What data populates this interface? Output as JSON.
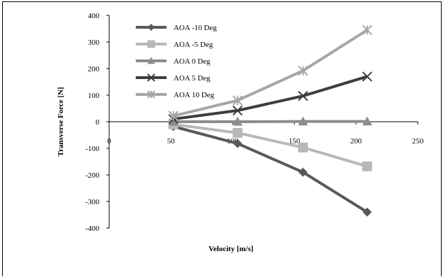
{
  "chart_data": {
    "type": "line",
    "xlabel": "Velocity [m/s]",
    "ylabel": "Transverse Force [N]",
    "xlim": [
      0,
      250
    ],
    "ylim": [
      -400,
      400
    ],
    "x_ticks": [
      "0",
      "50",
      "100",
      "150",
      "200",
      "250"
    ],
    "y_ticks": [
      "400",
      "300",
      "200",
      "100",
      "0",
      "-100",
      "-200",
      "-300",
      "-400"
    ],
    "grid": false,
    "legend_position": "top-left",
    "series": [
      {
        "name": "AOA -10 Deg",
        "marker": "diamond",
        "color": "#595959",
        "x": [
          52,
          104,
          157,
          209
        ],
        "y": [
          -18,
          -82,
          -190,
          -340
        ]
      },
      {
        "name": "AOA -5 Deg",
        "marker": "square",
        "color": "#b8b8b8",
        "x": [
          52,
          104,
          157,
          209
        ],
        "y": [
          -10,
          -42,
          -97,
          -168
        ]
      },
      {
        "name": "AOA 0 Deg",
        "marker": "triangle",
        "color": "#8c8c8c",
        "x": [
          52,
          104,
          157,
          209
        ],
        "y": [
          0,
          0,
          1,
          1
        ]
      },
      {
        "name": "AOA 5 Deg",
        "marker": "x",
        "color": "#3d3d3d",
        "x": [
          52,
          104,
          157,
          209
        ],
        "y": [
          10,
          42,
          97,
          170
        ]
      },
      {
        "name": "AOA 10 Deg",
        "marker": "star",
        "color": "#a6a6a6",
        "x": [
          52,
          104,
          157,
          209
        ],
        "y": [
          22,
          80,
          192,
          345
        ]
      }
    ]
  }
}
